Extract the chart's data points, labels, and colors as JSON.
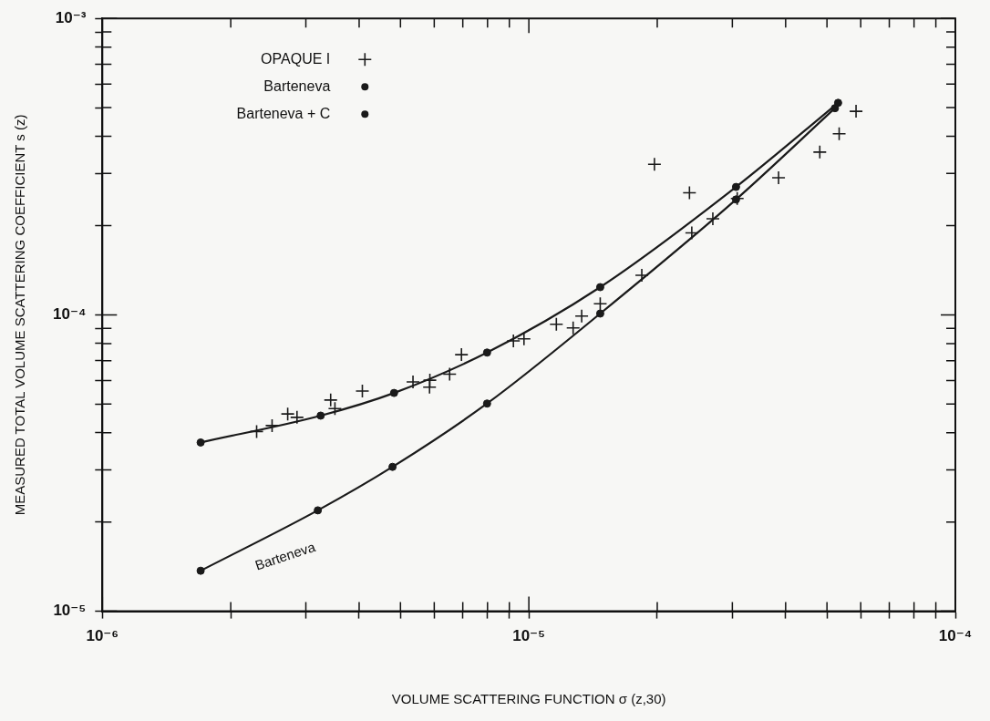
{
  "chart_data": {
    "type": "line",
    "xlabel": "VOLUME SCATTERING FUNCTION σ (z,30)",
    "ylabel": "MEASURED TOTAL VOLUME SCATTERING COEFFICIENT s (z)",
    "log": "xy",
    "grid": false,
    "legend": "top left",
    "xlim": [
      1e-06,
      0.0001
    ],
    "xticks": [
      {
        "value": 1e-06,
        "label": "10⁻⁶"
      },
      {
        "value": 2e-06,
        "label": null
      },
      {
        "value": 3e-06,
        "label": null
      },
      {
        "value": 4e-06,
        "label": null
      },
      {
        "value": 5e-06,
        "label": null
      },
      {
        "value": 6e-06,
        "label": null
      },
      {
        "value": 7e-06,
        "label": null
      },
      {
        "value": 8e-06,
        "label": null
      },
      {
        "value": 9e-06,
        "label": null
      },
      {
        "value": 1e-05,
        "label": "10⁻⁵"
      },
      {
        "value": 2e-05,
        "label": null
      },
      {
        "value": 3e-05,
        "label": null
      },
      {
        "value": 4e-05,
        "label": null
      },
      {
        "value": 5e-05,
        "label": null
      },
      {
        "value": 6e-05,
        "label": null
      },
      {
        "value": 7e-05,
        "label": null
      },
      {
        "value": 8e-05,
        "label": null
      },
      {
        "value": 9e-05,
        "label": null
      },
      {
        "value": 0.0001,
        "label": "10⁻⁴"
      }
    ],
    "ylim": [
      1e-05,
      0.001
    ],
    "yticks": [
      {
        "value": 1e-05,
        "label": "10⁻⁵"
      },
      {
        "value": 2e-05,
        "label": null
      },
      {
        "value": 3e-05,
        "label": null
      },
      {
        "value": 4e-05,
        "label": null
      },
      {
        "value": 5e-05,
        "label": null
      },
      {
        "value": 6e-05,
        "label": null
      },
      {
        "value": 7e-05,
        "label": null
      },
      {
        "value": 8e-05,
        "label": null
      },
      {
        "value": 9e-05,
        "label": null
      },
      {
        "value": 0.0001,
        "label": "10⁻⁴"
      },
      {
        "value": 0.0002,
        "label": null
      },
      {
        "value": 0.0003,
        "label": null
      },
      {
        "value": 0.0004,
        "label": null
      },
      {
        "value": 0.0005,
        "label": null
      },
      {
        "value": 0.0006,
        "label": null
      },
      {
        "value": 0.0007,
        "label": null
      },
      {
        "value": 0.0008,
        "label": null
      },
      {
        "value": 0.0009,
        "label": null
      },
      {
        "value": 0.001,
        "label": "10⁻³"
      }
    ],
    "series": [
      {
        "name": "OPAQUE I",
        "type": "scatter",
        "marker": "cross",
        "color": "#1a1a1a",
        "x": [
          2.3e-06,
          2.5e-06,
          2.72e-06,
          2.86e-06,
          3.43e-06,
          3.51e-06,
          4.07e-06,
          5.35e-06,
          5.86e-06,
          5.85e-06,
          6.52e-06,
          6.95e-06,
          9.2e-06,
          9.74e-06,
          1.16e-05,
          1.27e-05,
          1.33e-05,
          1.47e-05,
          1.84e-05,
          1.97e-05,
          2.38e-05,
          2.41e-05,
          2.7e-05,
          3.08e-05,
          3.85e-05,
          4.81e-05,
          5.34e-05,
          5.85e-05
        ],
        "values": [
          4.04e-05,
          4.23e-05,
          4.63e-05,
          4.51e-05,
          5.16e-05,
          4.83e-05,
          5.53e-05,
          5.94e-05,
          6.02e-05,
          5.7e-05,
          6.31e-05,
          7.34e-05,
          8.17e-05,
          8.3e-05,
          9.29e-05,
          9.03e-05,
          9.9e-05,
          0.000109,
          0.000136,
          0.000322,
          0.000258,
          0.000189,
          0.000211,
          0.000247,
          0.00029,
          0.000354,
          0.000408,
          0.000486
        ]
      },
      {
        "name": "Barteneva",
        "marker": "circle",
        "color": "#1a1a1a",
        "x": [
          1.7e-06,
          3.2e-06,
          4.79e-06,
          7.98e-06,
          1.47e-05,
          3.06e-05,
          5.22e-05
        ],
        "values": [
          1.37e-05,
          2.19e-05,
          3.07e-05,
          5.02e-05,
          0.000101,
          0.000245,
          0.000498
        ]
      },
      {
        "name": "Barteneva + C",
        "marker": "circle",
        "color": "#1a1a1a",
        "x": [
          1.7e-06,
          3.25e-06,
          4.83e-06,
          7.98e-06,
          1.47e-05,
          3.06e-05,
          5.31e-05
        ],
        "values": [
          3.71e-05,
          4.57e-05,
          5.45e-05,
          7.46e-05,
          0.000124,
          0.00027,
          0.000519
        ]
      }
    ],
    "annotations": [
      "Barteneva"
    ]
  }
}
